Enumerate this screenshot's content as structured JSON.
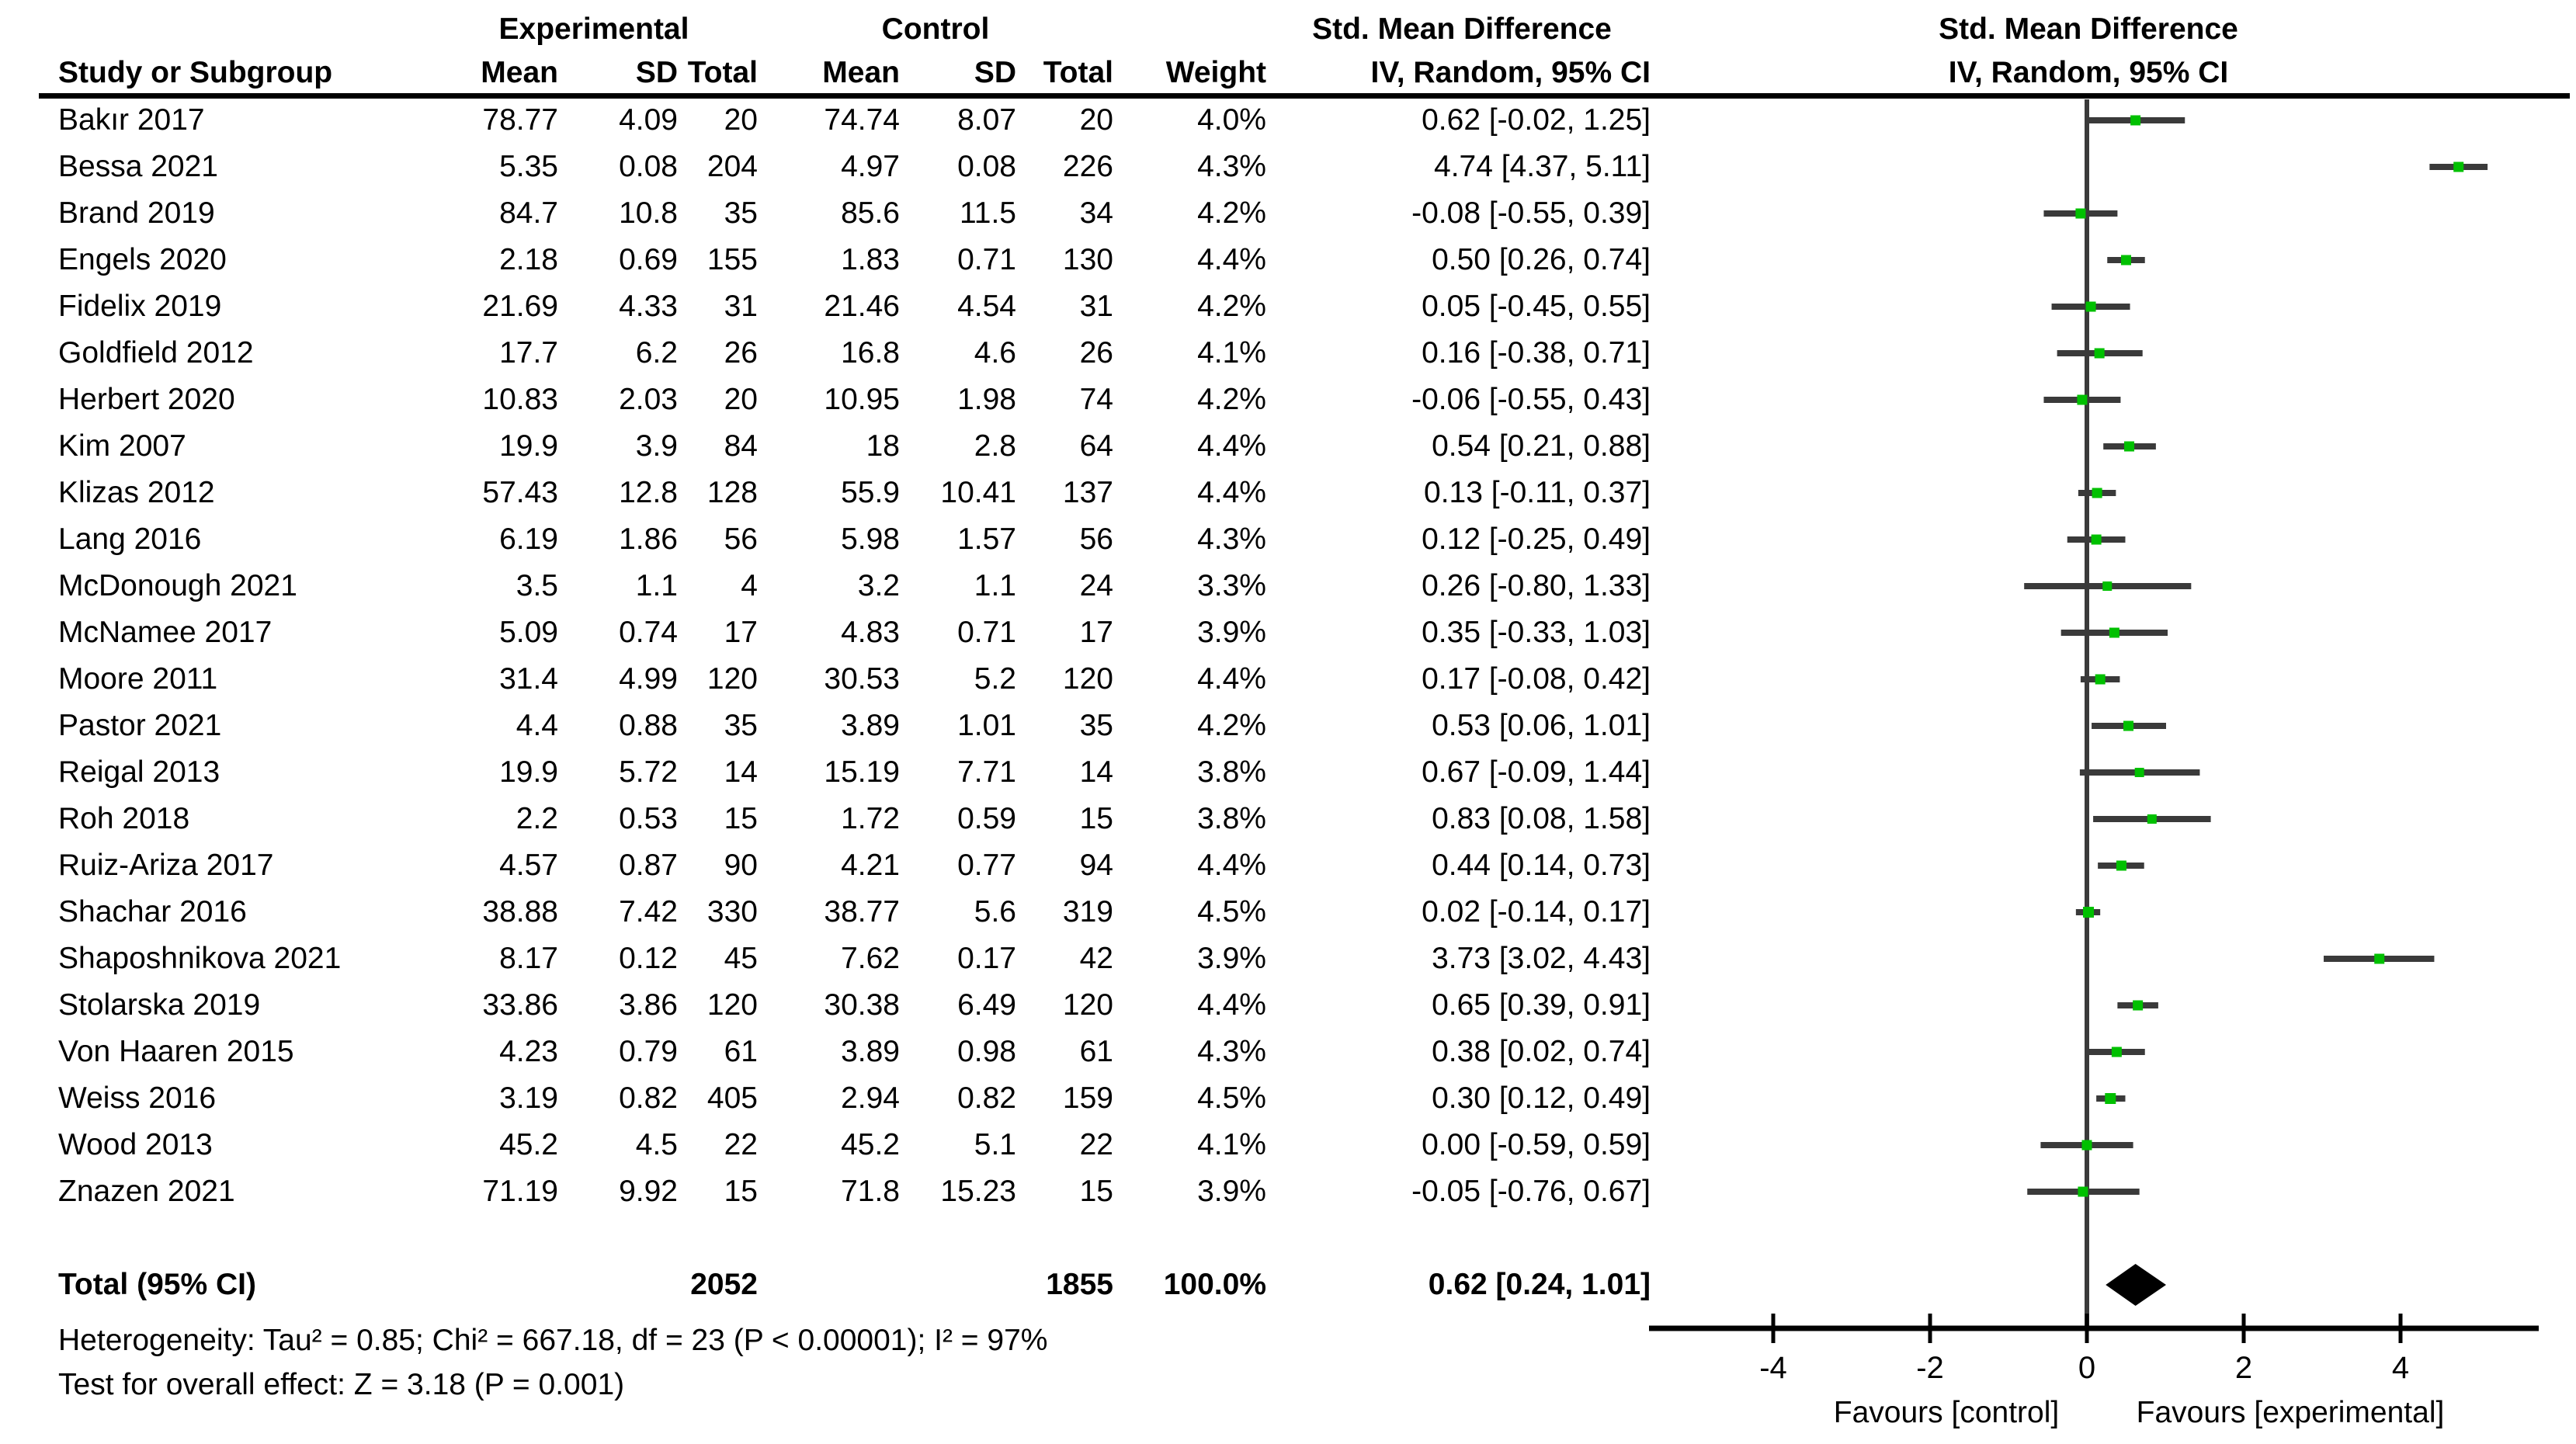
{
  "chart_data": {
    "type": "scatter",
    "variant": "forest-plot",
    "effect_measure": "Std. Mean Difference",
    "method": "IV, Random, 95% CI",
    "headers": {
      "study": "Study or Subgroup",
      "experimental_group": "Experimental",
      "control_group": "Control",
      "smd_left": "Std. Mean Difference",
      "smd_right": "Std. Mean Difference",
      "method_left": "IV, Random, 95% CI",
      "method_right": "IV, Random, 95% CI",
      "mean": "Mean",
      "sd": "SD",
      "total": "Total",
      "weight": "Weight"
    },
    "studies": [
      {
        "study": "Bakır 2017",
        "exp_mean": "78.77",
        "exp_sd": "4.09",
        "exp_total": "20",
        "ctl_mean": "74.74",
        "ctl_sd": "8.07",
        "ctl_total": "20",
        "weight": "4.0%",
        "ci_label": "0.62 [-0.02, 1.25]",
        "est": 0.62,
        "lo": -0.02,
        "hi": 1.25
      },
      {
        "study": "Bessa 2021",
        "exp_mean": "5.35",
        "exp_sd": "0.08",
        "exp_total": "204",
        "ctl_mean": "4.97",
        "ctl_sd": "0.08",
        "ctl_total": "226",
        "weight": "4.3%",
        "ci_label": "4.74 [4.37, 5.11]",
        "est": 4.74,
        "lo": 4.37,
        "hi": 5.11
      },
      {
        "study": "Brand 2019",
        "exp_mean": "84.7",
        "exp_sd": "10.8",
        "exp_total": "35",
        "ctl_mean": "85.6",
        "ctl_sd": "11.5",
        "ctl_total": "34",
        "weight": "4.2%",
        "ci_label": "-0.08 [-0.55, 0.39]",
        "est": -0.08,
        "lo": -0.55,
        "hi": 0.39
      },
      {
        "study": "Engels 2020",
        "exp_mean": "2.18",
        "exp_sd": "0.69",
        "exp_total": "155",
        "ctl_mean": "1.83",
        "ctl_sd": "0.71",
        "ctl_total": "130",
        "weight": "4.4%",
        "ci_label": "0.50 [0.26, 0.74]",
        "est": 0.5,
        "lo": 0.26,
        "hi": 0.74
      },
      {
        "study": "Fidelix 2019",
        "exp_mean": "21.69",
        "exp_sd": "4.33",
        "exp_total": "31",
        "ctl_mean": "21.46",
        "ctl_sd": "4.54",
        "ctl_total": "31",
        "weight": "4.2%",
        "ci_label": "0.05 [-0.45, 0.55]",
        "est": 0.05,
        "lo": -0.45,
        "hi": 0.55
      },
      {
        "study": "Goldfield 2012",
        "exp_mean": "17.7",
        "exp_sd": "6.2",
        "exp_total": "26",
        "ctl_mean": "16.8",
        "ctl_sd": "4.6",
        "ctl_total": "26",
        "weight": "4.1%",
        "ci_label": "0.16 [-0.38, 0.71]",
        "est": 0.16,
        "lo": -0.38,
        "hi": 0.71
      },
      {
        "study": "Herbert 2020",
        "exp_mean": "10.83",
        "exp_sd": "2.03",
        "exp_total": "20",
        "ctl_mean": "10.95",
        "ctl_sd": "1.98",
        "ctl_total": "74",
        "weight": "4.2%",
        "ci_label": "-0.06 [-0.55, 0.43]",
        "est": -0.06,
        "lo": -0.55,
        "hi": 0.43
      },
      {
        "study": "Kim 2007",
        "exp_mean": "19.9",
        "exp_sd": "3.9",
        "exp_total": "84",
        "ctl_mean": "18",
        "ctl_sd": "2.8",
        "ctl_total": "64",
        "weight": "4.4%",
        "ci_label": "0.54 [0.21, 0.88]",
        "est": 0.54,
        "lo": 0.21,
        "hi": 0.88
      },
      {
        "study": "Klizas 2012",
        "exp_mean": "57.43",
        "exp_sd": "12.8",
        "exp_total": "128",
        "ctl_mean": "55.9",
        "ctl_sd": "10.41",
        "ctl_total": "137",
        "weight": "4.4%",
        "ci_label": "0.13 [-0.11, 0.37]",
        "est": 0.13,
        "lo": -0.11,
        "hi": 0.37
      },
      {
        "study": "Lang 2016",
        "exp_mean": "6.19",
        "exp_sd": "1.86",
        "exp_total": "56",
        "ctl_mean": "5.98",
        "ctl_sd": "1.57",
        "ctl_total": "56",
        "weight": "4.3%",
        "ci_label": "0.12 [-0.25, 0.49]",
        "est": 0.12,
        "lo": -0.25,
        "hi": 0.49
      },
      {
        "study": "McDonough 2021",
        "exp_mean": "3.5",
        "exp_sd": "1.1",
        "exp_total": "4",
        "ctl_mean": "3.2",
        "ctl_sd": "1.1",
        "ctl_total": "24",
        "weight": "3.3%",
        "ci_label": "0.26 [-0.80, 1.33]",
        "est": 0.26,
        "lo": -0.8,
        "hi": 1.33
      },
      {
        "study": "McNamee 2017",
        "exp_mean": "5.09",
        "exp_sd": "0.74",
        "exp_total": "17",
        "ctl_mean": "4.83",
        "ctl_sd": "0.71",
        "ctl_total": "17",
        "weight": "3.9%",
        "ci_label": "0.35 [-0.33, 1.03]",
        "est": 0.35,
        "lo": -0.33,
        "hi": 1.03
      },
      {
        "study": "Moore 2011",
        "exp_mean": "31.4",
        "exp_sd": "4.99",
        "exp_total": "120",
        "ctl_mean": "30.53",
        "ctl_sd": "5.2",
        "ctl_total": "120",
        "weight": "4.4%",
        "ci_label": "0.17 [-0.08, 0.42]",
        "est": 0.17,
        "lo": -0.08,
        "hi": 0.42
      },
      {
        "study": "Pastor 2021",
        "exp_mean": "4.4",
        "exp_sd": "0.88",
        "exp_total": "35",
        "ctl_mean": "3.89",
        "ctl_sd": "1.01",
        "ctl_total": "35",
        "weight": "4.2%",
        "ci_label": "0.53 [0.06, 1.01]",
        "est": 0.53,
        "lo": 0.06,
        "hi": 1.01
      },
      {
        "study": "Reigal 2013",
        "exp_mean": "19.9",
        "exp_sd": "5.72",
        "exp_total": "14",
        "ctl_mean": "15.19",
        "ctl_sd": "7.71",
        "ctl_total": "14",
        "weight": "3.8%",
        "ci_label": "0.67 [-0.09, 1.44]",
        "est": 0.67,
        "lo": -0.09,
        "hi": 1.44
      },
      {
        "study": "Roh 2018",
        "exp_mean": "2.2",
        "exp_sd": "0.53",
        "exp_total": "15",
        "ctl_mean": "1.72",
        "ctl_sd": "0.59",
        "ctl_total": "15",
        "weight": "3.8%",
        "ci_label": "0.83 [0.08, 1.58]",
        "est": 0.83,
        "lo": 0.08,
        "hi": 1.58
      },
      {
        "study": "Ruiz-Ariza 2017",
        "exp_mean": "4.57",
        "exp_sd": "0.87",
        "exp_total": "90",
        "ctl_mean": "4.21",
        "ctl_sd": "0.77",
        "ctl_total": "94",
        "weight": "4.4%",
        "ci_label": "0.44 [0.14, 0.73]",
        "est": 0.44,
        "lo": 0.14,
        "hi": 0.73
      },
      {
        "study": "Shachar 2016",
        "exp_mean": "38.88",
        "exp_sd": "7.42",
        "exp_total": "330",
        "ctl_mean": "38.77",
        "ctl_sd": "5.6",
        "ctl_total": "319",
        "weight": "4.5%",
        "ci_label": "0.02 [-0.14, 0.17]",
        "est": 0.02,
        "lo": -0.14,
        "hi": 0.17
      },
      {
        "study": "Shaposhnikova 2021",
        "exp_mean": "8.17",
        "exp_sd": "0.12",
        "exp_total": "45",
        "ctl_mean": "7.62",
        "ctl_sd": "0.17",
        "ctl_total": "42",
        "weight": "3.9%",
        "ci_label": "3.73 [3.02, 4.43]",
        "est": 3.73,
        "lo": 3.02,
        "hi": 4.43
      },
      {
        "study": "Stolarska 2019",
        "exp_mean": "33.86",
        "exp_sd": "3.86",
        "exp_total": "120",
        "ctl_mean": "30.38",
        "ctl_sd": "6.49",
        "ctl_total": "120",
        "weight": "4.4%",
        "ci_label": "0.65 [0.39, 0.91]",
        "est": 0.65,
        "lo": 0.39,
        "hi": 0.91
      },
      {
        "study": "Von Haaren 2015",
        "exp_mean": "4.23",
        "exp_sd": "0.79",
        "exp_total": "61",
        "ctl_mean": "3.89",
        "ctl_sd": "0.98",
        "ctl_total": "61",
        "weight": "4.3%",
        "ci_label": "0.38 [0.02, 0.74]",
        "est": 0.38,
        "lo": 0.02,
        "hi": 0.74
      },
      {
        "study": "Weiss 2016",
        "exp_mean": "3.19",
        "exp_sd": "0.82",
        "exp_total": "405",
        "ctl_mean": "2.94",
        "ctl_sd": "0.82",
        "ctl_total": "159",
        "weight": "4.5%",
        "ci_label": "0.30 [0.12, 0.49]",
        "est": 0.3,
        "lo": 0.12,
        "hi": 0.49
      },
      {
        "study": "Wood 2013",
        "exp_mean": "45.2",
        "exp_sd": "4.5",
        "exp_total": "22",
        "ctl_mean": "45.2",
        "ctl_sd": "5.1",
        "ctl_total": "22",
        "weight": "4.1%",
        "ci_label": "0.00 [-0.59, 0.59]",
        "est": 0.0,
        "lo": -0.59,
        "hi": 0.59
      },
      {
        "study": "Znazen 2021",
        "exp_mean": "71.19",
        "exp_sd": "9.92",
        "exp_total": "15",
        "ctl_mean": "71.8",
        "ctl_sd": "15.23",
        "ctl_total": "15",
        "weight": "3.9%",
        "ci_label": "-0.05 [-0.76, 0.67]",
        "est": -0.05,
        "lo": -0.76,
        "hi": 0.67
      }
    ],
    "total": {
      "label": "Total (95% CI)",
      "exp_total": "2052",
      "ctl_total": "1855",
      "weight": "100.0%",
      "ci_label": "0.62 [0.24, 1.01]",
      "est": 0.62,
      "lo": 0.24,
      "hi": 1.01
    },
    "footnotes": {
      "heterogeneity": "Heterogeneity: Tau² = 0.85; Chi² = 667.18, df = 23 (P < 0.00001); I² = 97%",
      "overall_effect": "Test for overall effect: Z = 3.18 (P = 0.001)"
    },
    "axis": {
      "ticks": [
        -4,
        -2,
        0,
        2,
        4
      ],
      "tick_labels": [
        "-4",
        "-2",
        "0",
        "2",
        "4"
      ],
      "range": [
        -5.6,
        5.75
      ],
      "favours_left": "Favours [control]",
      "favours_right": "Favours [experimental]"
    },
    "colors": {
      "marker_green": "#00C000",
      "ci_line": "#3A3A3A",
      "zero_line": "#3A3A3A",
      "diamond": "#000000",
      "axis": "#000000",
      "text": "#000000"
    }
  }
}
